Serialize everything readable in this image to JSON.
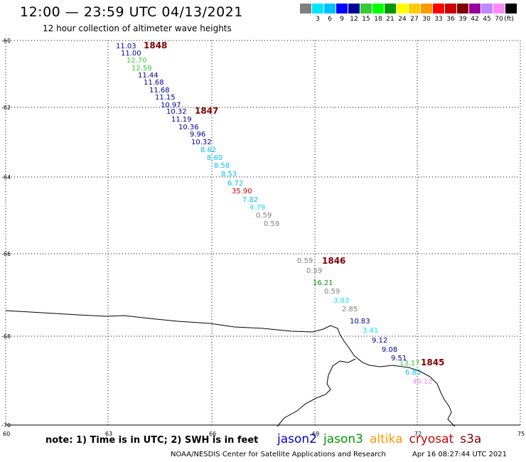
{
  "header": {
    "title": "12:00 — 23:59 UTC 04/13/2021",
    "subtitle": "12 hour collection of altimeter wave heights"
  },
  "colorbar": {
    "unit_label": "(ft)",
    "cells": [
      {
        "color": "#808080",
        "label": ""
      },
      {
        "color": "#00e5ff",
        "label": "3"
      },
      {
        "color": "#00bfff",
        "label": "6"
      },
      {
        "color": "#0000ff",
        "label": "9"
      },
      {
        "color": "#000096",
        "label": "12"
      },
      {
        "color": "#33cc33",
        "label": "15"
      },
      {
        "color": "#00ff00",
        "label": "18"
      },
      {
        "color": "#009900",
        "label": "21"
      },
      {
        "color": "#ffff00",
        "label": "24"
      },
      {
        "color": "#ffcc00",
        "label": "27"
      },
      {
        "color": "#ff9900",
        "label": "30"
      },
      {
        "color": "#ff0000",
        "label": "33"
      },
      {
        "color": "#cc0000",
        "label": "36"
      },
      {
        "color": "#800000",
        "label": "39"
      },
      {
        "color": "#990099",
        "label": "42"
      },
      {
        "color": "#bb88ff",
        "label": "45"
      },
      {
        "color": "#ff88ff",
        "label": "70"
      },
      {
        "color": "#000000",
        "label": ""
      }
    ]
  },
  "grid": {
    "lat_labels": [
      {
        "lat": -60,
        "label": "-60"
      },
      {
        "lat": -62,
        "label": "-62"
      },
      {
        "lat": -64,
        "label": "-64"
      },
      {
        "lat": -66,
        "label": "-66"
      },
      {
        "lat": -68,
        "label": "-68"
      },
      {
        "lat": -70,
        "label": "-70"
      }
    ],
    "lon_labels": [
      {
        "lon": 60,
        "label": "60"
      },
      {
        "lon": 63,
        "label": "63"
      },
      {
        "lon": 66,
        "label": "66"
      },
      {
        "lon": 69,
        "label": "69"
      },
      {
        "lon": 72,
        "label": "72"
      },
      {
        "lon": 75,
        "label": "75"
      }
    ]
  },
  "passes": [
    {
      "label": "1848"
    },
    {
      "label": "1847"
    },
    {
      "label": "1846"
    },
    {
      "label": "1845"
    }
  ],
  "wave_heights": [
    {
      "value": "11.03",
      "color": "#000096"
    },
    {
      "value": "11.00",
      "color": "#000096"
    },
    {
      "value": "12.70",
      "color": "#33cc33"
    },
    {
      "value": "12.59",
      "color": "#33cc33"
    },
    {
      "value": "11.44",
      "color": "#000096"
    },
    {
      "value": "11.68",
      "color": "#000096"
    },
    {
      "value": "11.68",
      "color": "#000096"
    },
    {
      "value": "11.15",
      "color": "#000096"
    },
    {
      "value": "10.97",
      "color": "#000096"
    },
    {
      "value": "10.32",
      "color": "#000096"
    },
    {
      "value": "11.19",
      "color": "#000096"
    },
    {
      "value": "10.36",
      "color": "#000096"
    },
    {
      "value": "9.96",
      "color": "#000096"
    },
    {
      "value": "10.32",
      "color": "#000096"
    },
    {
      "value": "8.62",
      "color": "#00bfff"
    },
    {
      "value": "8.60",
      "color": "#00bfff"
    },
    {
      "value": "8.58",
      "color": "#00bfff"
    },
    {
      "value": "8.53",
      "color": "#00bfff"
    },
    {
      "value": "6.72",
      "color": "#00bfff"
    },
    {
      "value": "35.90",
      "color": "#cc0000"
    },
    {
      "value": "7.82",
      "color": "#00bfff"
    },
    {
      "value": "4.79",
      "color": "#00e5ff"
    },
    {
      "value": "0.59",
      "color": "#808080"
    },
    {
      "value": "0.59",
      "color": "#808080"
    },
    {
      "value": "0.59",
      "color": "#808080"
    },
    {
      "value": "0.59",
      "color": "#808080"
    },
    {
      "value": "16.21",
      "color": "#009900"
    },
    {
      "value": "0.59",
      "color": "#808080"
    },
    {
      "value": "3.03",
      "color": "#00e5ff"
    },
    {
      "value": "2.85",
      "color": "#808080"
    },
    {
      "value": "10.83",
      "color": "#000096"
    },
    {
      "value": "3.41",
      "color": "#00e5ff"
    },
    {
      "value": "9.12",
      "color": "#000096"
    },
    {
      "value": "9.08",
      "color": "#000096"
    },
    {
      "value": "9.51",
      "color": "#000096"
    },
    {
      "value": "13.17",
      "color": "#33cc33"
    },
    {
      "value": "6.83",
      "color": "#00bfff"
    },
    {
      "value": "49.12",
      "color": "#ff88ff"
    }
  ],
  "footer": {
    "note": "note: 1) Time is in UTC; 2) SWH is in feet",
    "missions": [
      {
        "name": "jason2",
        "color": "#0000cc"
      },
      {
        "name": "jason3",
        "color": "#009900"
      },
      {
        "name": "altika",
        "color": "#ff9900"
      },
      {
        "name": "cryosat",
        "color": "#cc0000"
      },
      {
        "name": "s3a",
        "color": "#800000"
      }
    ],
    "credit": "NOAA/NESDIS Center for Satellite Applications and Research",
    "timestamp": "Apr 16 08:27:44 UTC 2021"
  }
}
